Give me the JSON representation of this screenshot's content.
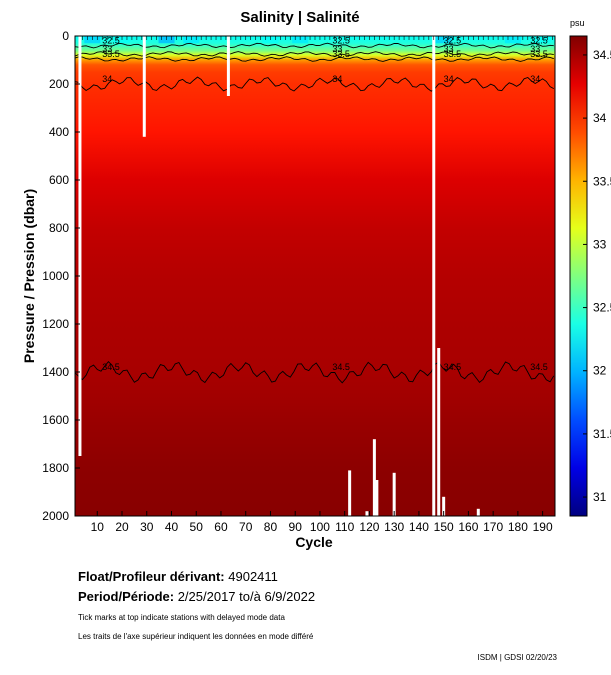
{
  "chart_data": {
    "type": "heatmap",
    "title": "Salinity | Salinité",
    "xlabel": "Cycle",
    "ylabel": "Pressure / Pression (dbar)",
    "xlim": [
      1,
      195
    ],
    "ylim": [
      0,
      2000
    ],
    "y_inverted": true,
    "x_ticks": [
      10,
      20,
      30,
      40,
      50,
      60,
      70,
      80,
      90,
      100,
      110,
      120,
      130,
      140,
      150,
      160,
      170,
      180,
      190
    ],
    "y_ticks": [
      0,
      200,
      400,
      600,
      800,
      1000,
      1200,
      1400,
      1600,
      1800,
      2000
    ],
    "colorbar": {
      "unit": "psu",
      "range": [
        30.85,
        34.65
      ],
      "ticks": [
        31,
        31.5,
        32,
        32.5,
        33,
        33.5,
        34,
        34.5
      ],
      "colormap": "jet"
    },
    "profile": {
      "depth": [
        0,
        30,
        60,
        80,
        100,
        120,
        150,
        200,
        300,
        400,
        600,
        800,
        1000,
        1200,
        1400,
        1500,
        1600,
        1800,
        2000
      ],
      "salinity": [
        32.3,
        32.4,
        32.7,
        33.1,
        33.6,
        33.85,
        33.95,
        34.0,
        34.05,
        34.1,
        34.3,
        34.4,
        34.45,
        34.48,
        34.5,
        34.52,
        34.55,
        34.6,
        34.62
      ]
    },
    "contours": [
      {
        "level": 32.5,
        "label": "32.5"
      },
      {
        "level": 33,
        "label": "33"
      },
      {
        "level": 33.5,
        "label": "33.5"
      },
      {
        "level": 34,
        "label": "34"
      },
      {
        "level": 34.5,
        "label": "34.5"
      }
    ],
    "gaps": [
      {
        "cycle": 3,
        "from": 0,
        "to": 1750
      },
      {
        "cycle": 29,
        "from": 0,
        "to": 420
      },
      {
        "cycle": 63,
        "from": 0,
        "to": 250
      },
      {
        "cycle": 112,
        "from": 1810,
        "to": 2000
      },
      {
        "cycle": 119,
        "from": 1980,
        "to": 2000
      },
      {
        "cycle": 122,
        "from": 1680,
        "to": 2000
      },
      {
        "cycle": 123,
        "from": 1850,
        "to": 2000
      },
      {
        "cycle": 130,
        "from": 1820,
        "to": 2000
      },
      {
        "cycle": 146,
        "from": 0,
        "to": 2000
      },
      {
        "cycle": 148,
        "from": 1300,
        "to": 2000
      },
      {
        "cycle": 150,
        "from": 1920,
        "to": 2000
      },
      {
        "cycle": 164,
        "from": 1970,
        "to": 2000
      }
    ]
  },
  "info": {
    "float_label": "Float/Profileur dérivant:",
    "float_value": "4902411",
    "period_label": "Period/Période:",
    "period_value": "2/25/2017  to/à  6/9/2022",
    "note_en": "Tick marks at top indicate stations with delayed mode data",
    "note_fr": "Les traits de l'axe supérieur indiquent les données en mode différé",
    "stamp": "ISDM | GDSI  02/20/23"
  }
}
